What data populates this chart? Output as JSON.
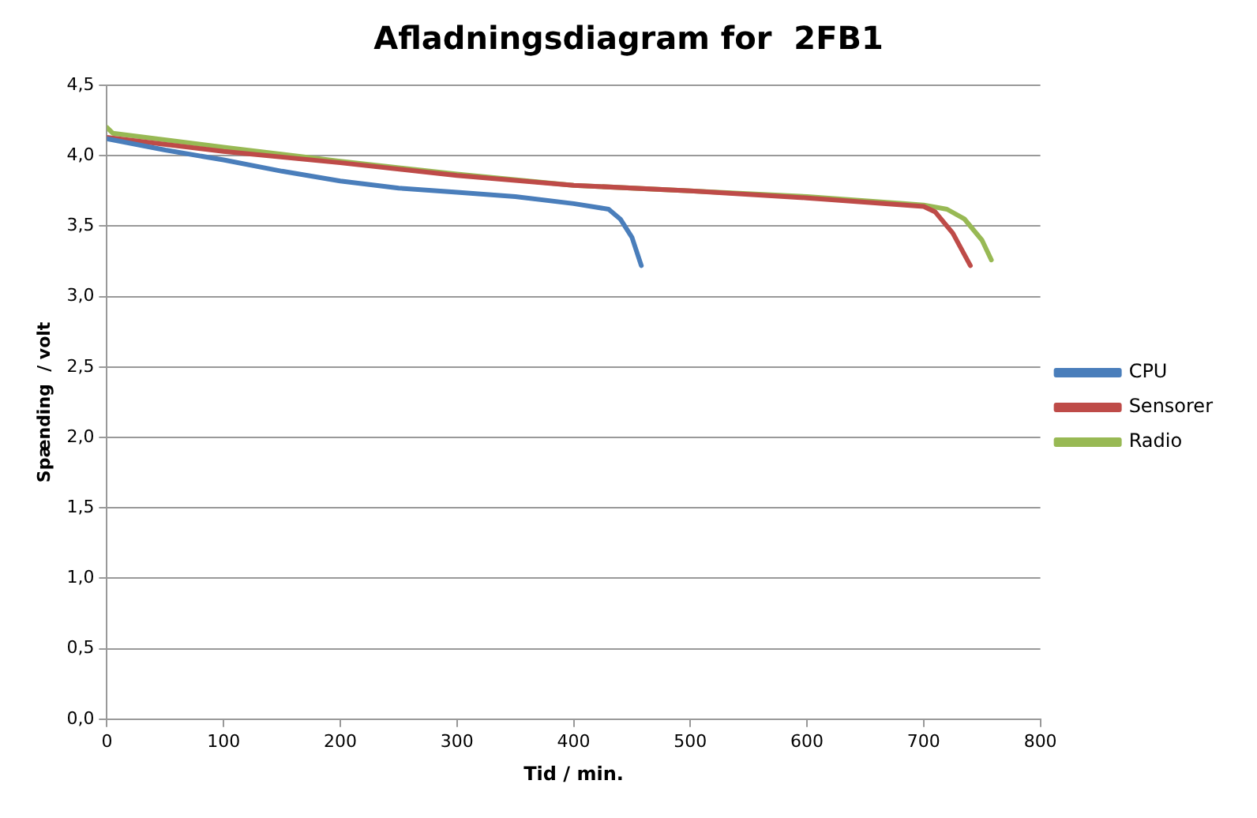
{
  "chart_data": {
    "type": "line",
    "title": "Afladningsdiagram for  2FB1",
    "xlabel": "Tid / min.",
    "ylabel": "Spænding  / volt",
    "xlim": [
      0,
      800
    ],
    "xticks": [
      0,
      100,
      200,
      300,
      400,
      500,
      600,
      700,
      800
    ],
    "ylim": [
      0,
      4.5
    ],
    "yticks": [
      {
        "value": 0,
        "label": "0,0"
      },
      {
        "value": 0.5,
        "label": "0,5"
      },
      {
        "value": 1,
        "label": "1,0"
      },
      {
        "value": 1.5,
        "label": "1,5"
      },
      {
        "value": 2,
        "label": "2,0"
      },
      {
        "value": 2.5,
        "label": "2,5"
      },
      {
        "value": 3,
        "label": "3,0"
      },
      {
        "value": 3.5,
        "label": "3,5"
      },
      {
        "value": 4,
        "label": "4,0"
      },
      {
        "value": 4.5,
        "label": "4,5"
      }
    ],
    "grid": "y",
    "legend": "right",
    "marker": "none",
    "series": [
      {
        "name": "CPU",
        "color": "#4a7ebb",
        "x": [
          0,
          50,
          100,
          150,
          200,
          250,
          300,
          350,
          400,
          430,
          440,
          450,
          458
        ],
        "values": [
          4.12,
          4.04,
          3.97,
          3.89,
          3.82,
          3.77,
          3.74,
          3.71,
          3.66,
          3.62,
          3.55,
          3.42,
          3.22
        ]
      },
      {
        "name": "Sensorer",
        "color": "#be4b48",
        "x": [
          0,
          100,
          200,
          300,
          400,
          500,
          600,
          700,
          710,
          725,
          740
        ],
        "values": [
          4.13,
          4.03,
          3.95,
          3.86,
          3.79,
          3.75,
          3.7,
          3.64,
          3.6,
          3.45,
          3.22
        ]
      },
      {
        "name": "Radio",
        "color": "#98b954",
        "x": [
          0,
          5,
          100,
          200,
          300,
          400,
          500,
          600,
          700,
          720,
          735,
          750,
          758
        ],
        "values": [
          4.2,
          4.16,
          4.06,
          3.96,
          3.87,
          3.79,
          3.75,
          3.71,
          3.65,
          3.62,
          3.55,
          3.4,
          3.26
        ]
      }
    ]
  }
}
